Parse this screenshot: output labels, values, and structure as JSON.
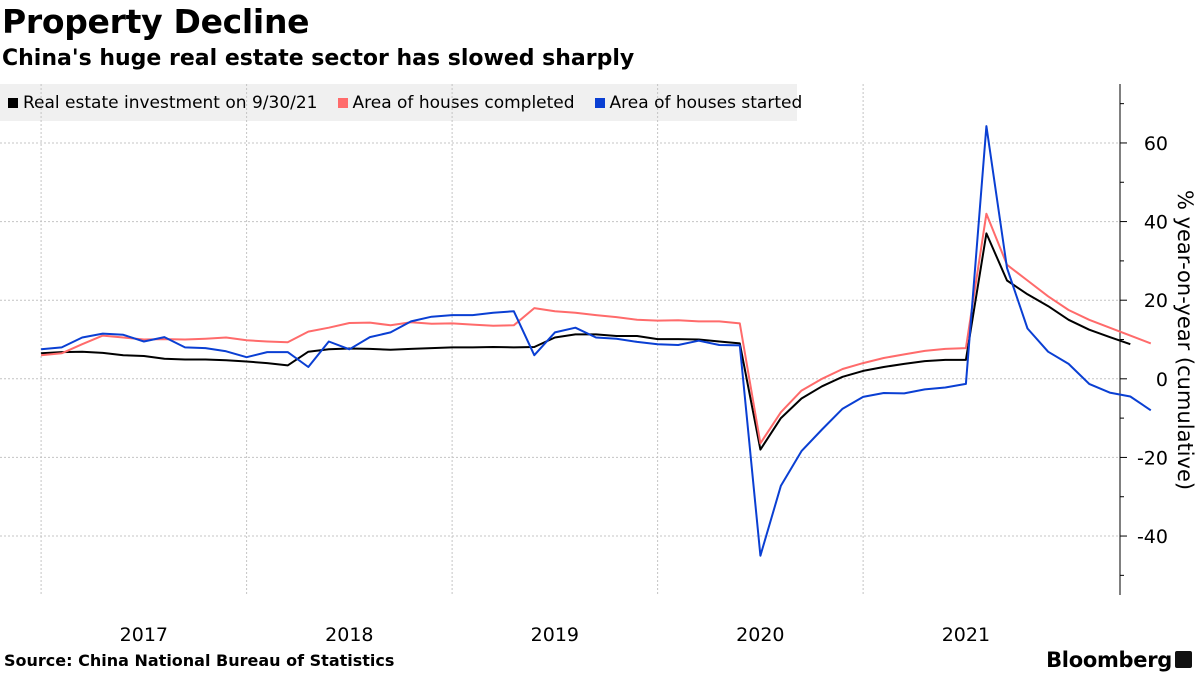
{
  "header": {
    "title": "Property Decline",
    "subtitle": "China's huge real estate sector has slowed sharply"
  },
  "footer": {
    "source": "Source: China National Bureau of Statistics",
    "brand": "Bloomberg"
  },
  "chart_data": {
    "type": "line",
    "title": "Property Decline",
    "subtitle": "China's huge real estate sector has slowed sharply",
    "ylabel": "% year-on-year (cumulative)",
    "xlabel": "",
    "ylim": [
      -55,
      75
    ],
    "yticks": [
      -40,
      -20,
      0,
      20,
      40,
      60
    ],
    "xlim": [
      2016.3,
      2021.75
    ],
    "xticks": [
      {
        "label": "2017",
        "value": 2017.0
      },
      {
        "label": "2018",
        "value": 2018.0
      },
      {
        "label": "2019",
        "value": 2019.0
      },
      {
        "label": "2020",
        "value": 2020.0
      },
      {
        "label": "2021",
        "value": 2021.0
      }
    ],
    "x_dividers": [
      2016.5,
      2017.5,
      2018.5,
      2019.5,
      2020.5
    ],
    "grid": true,
    "y_axis_position": "right",
    "legend_position": "top-left",
    "series": [
      {
        "name": "Real estate investment on 9/30/21",
        "color": "#000000",
        "points": [
          [
            2016.5,
            6.5
          ],
          [
            2016.6,
            6.8
          ],
          [
            2016.7,
            6.9
          ],
          [
            2016.8,
            6.6
          ],
          [
            2016.9,
            6.0
          ],
          [
            2017.0,
            5.8
          ],
          [
            2017.1,
            5.1
          ],
          [
            2017.2,
            4.9
          ],
          [
            2017.3,
            4.9
          ],
          [
            2017.4,
            4.7
          ],
          [
            2017.5,
            4.4
          ],
          [
            2017.6,
            4.0
          ],
          [
            2017.7,
            3.4
          ],
          [
            2017.8,
            6.9
          ],
          [
            2017.9,
            7.5
          ],
          [
            2018.0,
            7.7
          ],
          [
            2018.1,
            7.6
          ],
          [
            2018.2,
            7.4
          ],
          [
            2018.3,
            7.6
          ],
          [
            2018.4,
            7.8
          ],
          [
            2018.5,
            8.0
          ],
          [
            2018.6,
            8.0
          ],
          [
            2018.7,
            8.1
          ],
          [
            2018.8,
            8.0
          ],
          [
            2018.9,
            8.1
          ],
          [
            2019.0,
            10.5
          ],
          [
            2019.1,
            11.3
          ],
          [
            2019.2,
            11.3
          ],
          [
            2019.3,
            10.9
          ],
          [
            2019.4,
            10.9
          ],
          [
            2019.5,
            10.1
          ],
          [
            2019.6,
            10.1
          ],
          [
            2019.7,
            10.0
          ],
          [
            2019.8,
            9.5
          ],
          [
            2019.9,
            9.0
          ],
          [
            2020.0,
            -18.0
          ],
          [
            2020.1,
            -10.0
          ],
          [
            2020.2,
            -5.0
          ],
          [
            2020.3,
            -1.9
          ],
          [
            2020.4,
            0.5
          ],
          [
            2020.5,
            2.0
          ],
          [
            2020.6,
            3.0
          ],
          [
            2020.7,
            3.8
          ],
          [
            2020.8,
            4.5
          ],
          [
            2020.9,
            4.8
          ],
          [
            2021.0,
            4.8
          ],
          [
            2021.1,
            37.0
          ],
          [
            2021.2,
            25.0
          ],
          [
            2021.3,
            21.5
          ],
          [
            2021.4,
            18.5
          ],
          [
            2021.5,
            15.0
          ],
          [
            2021.6,
            12.5
          ],
          [
            2021.7,
            10.6
          ],
          [
            2021.8,
            8.8
          ]
        ]
      },
      {
        "name": "Area of houses completed",
        "color": "#ff6b6b",
        "points": [
          [
            2016.5,
            6.0
          ],
          [
            2016.6,
            6.5
          ],
          [
            2016.7,
            8.8
          ],
          [
            2016.8,
            11.0
          ],
          [
            2016.9,
            10.5
          ],
          [
            2017.0,
            10.0
          ],
          [
            2017.1,
            10.1
          ],
          [
            2017.2,
            10.0
          ],
          [
            2017.3,
            10.2
          ],
          [
            2017.4,
            10.5
          ],
          [
            2017.5,
            9.8
          ],
          [
            2017.6,
            9.5
          ],
          [
            2017.7,
            9.3
          ],
          [
            2017.8,
            12.0
          ],
          [
            2017.9,
            13.0
          ],
          [
            2018.0,
            14.2
          ],
          [
            2018.1,
            14.3
          ],
          [
            2018.2,
            13.6
          ],
          [
            2018.3,
            14.4
          ],
          [
            2018.4,
            14.0
          ],
          [
            2018.5,
            14.1
          ],
          [
            2018.6,
            13.8
          ],
          [
            2018.7,
            13.5
          ],
          [
            2018.8,
            13.6
          ],
          [
            2018.9,
            18.0
          ],
          [
            2019.0,
            17.2
          ],
          [
            2019.1,
            16.8
          ],
          [
            2019.2,
            16.2
          ],
          [
            2019.3,
            15.7
          ],
          [
            2019.4,
            15.0
          ],
          [
            2019.5,
            14.8
          ],
          [
            2019.6,
            14.9
          ],
          [
            2019.7,
            14.6
          ],
          [
            2019.8,
            14.6
          ],
          [
            2019.9,
            14.1
          ],
          [
            2020.0,
            -16.4
          ],
          [
            2020.1,
            -8.5
          ],
          [
            2020.2,
            -3.0
          ],
          [
            2020.3,
            0.0
          ],
          [
            2020.4,
            2.5
          ],
          [
            2020.5,
            4.0
          ],
          [
            2020.6,
            5.3
          ],
          [
            2020.7,
            6.2
          ],
          [
            2020.8,
            7.1
          ],
          [
            2020.9,
            7.6
          ],
          [
            2021.0,
            7.8
          ],
          [
            2021.1,
            42.0
          ],
          [
            2021.2,
            29.0
          ],
          [
            2021.3,
            25.0
          ],
          [
            2021.4,
            21.0
          ],
          [
            2021.5,
            17.5
          ],
          [
            2021.6,
            15.0
          ],
          [
            2021.7,
            13.0
          ],
          [
            2021.8,
            11.0
          ],
          [
            2021.9,
            9.0
          ]
        ]
      },
      {
        "name": "Area of houses started",
        "color": "#0a3fd3",
        "points": [
          [
            2016.5,
            7.5
          ],
          [
            2016.6,
            8.0
          ],
          [
            2016.7,
            10.5
          ],
          [
            2016.8,
            11.5
          ],
          [
            2016.9,
            11.2
          ],
          [
            2017.0,
            9.5
          ],
          [
            2017.1,
            10.6
          ],
          [
            2017.2,
            8.0
          ],
          [
            2017.3,
            7.8
          ],
          [
            2017.4,
            7.0
          ],
          [
            2017.5,
            5.5
          ],
          [
            2017.6,
            6.8
          ],
          [
            2017.7,
            6.8
          ],
          [
            2017.8,
            3.0
          ],
          [
            2017.9,
            9.5
          ],
          [
            2018.0,
            7.5
          ],
          [
            2018.1,
            10.6
          ],
          [
            2018.2,
            11.8
          ],
          [
            2018.3,
            14.6
          ],
          [
            2018.4,
            15.8
          ],
          [
            2018.5,
            16.2
          ],
          [
            2018.6,
            16.2
          ],
          [
            2018.7,
            16.8
          ],
          [
            2018.8,
            17.2
          ],
          [
            2018.9,
            6.0
          ],
          [
            2019.0,
            11.8
          ],
          [
            2019.1,
            13.0
          ],
          [
            2019.2,
            10.5
          ],
          [
            2019.3,
            10.2
          ],
          [
            2019.4,
            9.4
          ],
          [
            2019.5,
            8.8
          ],
          [
            2019.6,
            8.6
          ],
          [
            2019.7,
            9.7
          ],
          [
            2019.8,
            8.6
          ],
          [
            2019.9,
            8.5
          ],
          [
            2020.0,
            -45.0
          ],
          [
            2020.1,
            -27.2
          ],
          [
            2020.2,
            -18.4
          ],
          [
            2020.3,
            -12.9
          ],
          [
            2020.4,
            -7.6
          ],
          [
            2020.5,
            -4.6
          ],
          [
            2020.6,
            -3.6
          ],
          [
            2020.7,
            -3.7
          ],
          [
            2020.8,
            -2.7
          ],
          [
            2020.9,
            -2.2
          ],
          [
            2021.0,
            -1.3
          ],
          [
            2021.1,
            64.3
          ],
          [
            2021.2,
            28.2
          ],
          [
            2021.3,
            12.8
          ],
          [
            2021.4,
            6.9
          ],
          [
            2021.5,
            3.8
          ],
          [
            2021.6,
            -1.3
          ],
          [
            2021.7,
            -3.5
          ],
          [
            2021.8,
            -4.5
          ],
          [
            2021.9,
            -8.0
          ]
        ]
      }
    ]
  }
}
